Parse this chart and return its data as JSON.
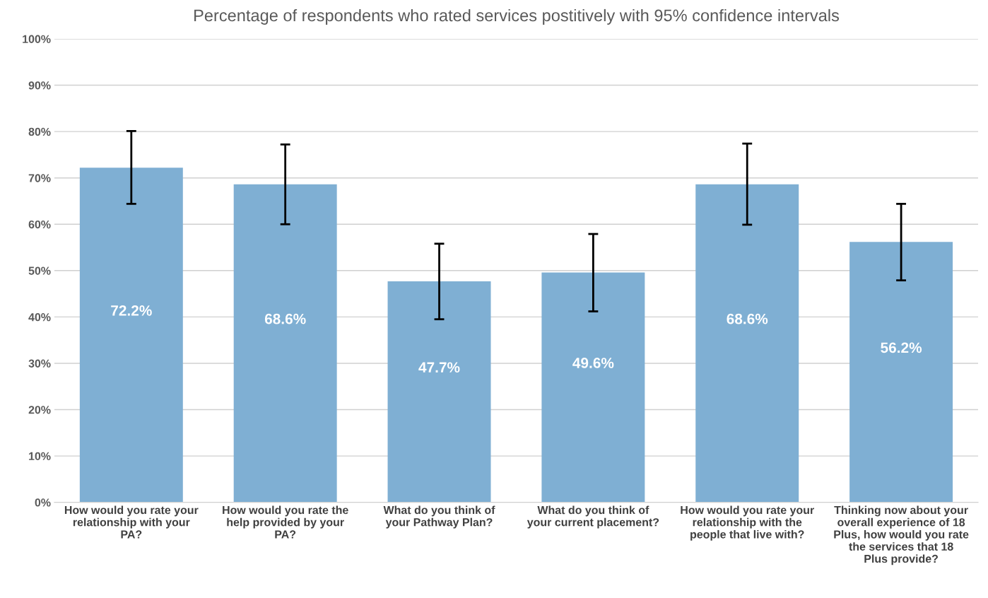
{
  "chart_data": {
    "type": "bar",
    "title": "Percentage of respondents who rated services postitively with 95% confidence intervals",
    "categories": [
      "How would you rate your relationship with your PA?",
      "How would you rate the help provided by your PA?",
      "What do you think of your Pathway Plan?",
      "What do you think of your current placement?",
      "How would you rate your relationship with the people that live with?",
      "Thinking now about your overall experience of 18 Plus, how would you rate the services that 18 Plus provide?"
    ],
    "values": [
      72.2,
      68.6,
      47.7,
      49.6,
      68.6,
      56.2
    ],
    "value_labels": [
      "72.2%",
      "68.6%",
      "47.7%",
      "49.6%",
      "68.6%",
      "56.2%"
    ],
    "errors": [
      [
        64.4,
        80.1
      ],
      [
        60.0,
        77.2
      ],
      [
        39.5,
        55.8
      ],
      [
        41.2,
        57.9
      ],
      [
        59.9,
        77.4
      ],
      [
        47.9,
        64.4
      ]
    ],
    "color": "#7fafd3",
    "ylim": [
      0,
      100
    ],
    "yticks": [
      {
        "value": 0,
        "label": "0%"
      },
      {
        "value": 10,
        "label": "10%"
      },
      {
        "value": 20,
        "label": "20%"
      },
      {
        "value": 30,
        "label": "30%"
      },
      {
        "value": 40,
        "label": "40%"
      },
      {
        "value": 50,
        "label": "50%"
      },
      {
        "value": 60,
        "label": "60%"
      },
      {
        "value": 70,
        "label": "70%"
      },
      {
        "value": 80,
        "label": "80%"
      },
      {
        "value": 90,
        "label": "90%"
      },
      {
        "value": 100,
        "label": "100%"
      }
    ],
    "grid": "y"
  }
}
